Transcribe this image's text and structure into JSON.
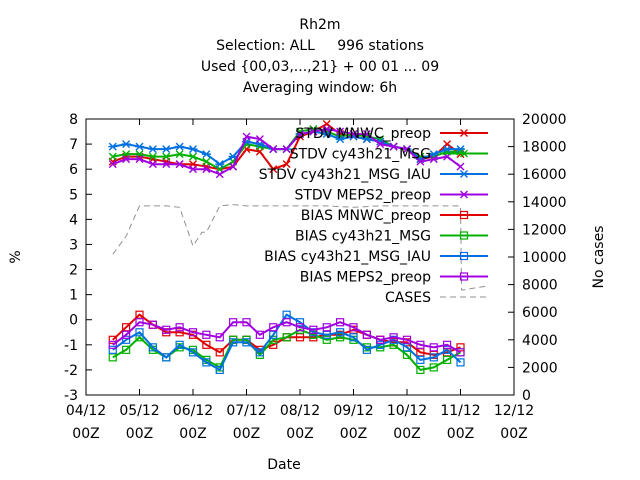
{
  "chart_data": {
    "type": "line",
    "title_lines": [
      "Rh2m",
      "Selection: ALL     996 stations",
      "Used {00,03,...,21} + 00 01 ... 09",
      "Averaging window:  6h"
    ],
    "xlabel": "Date",
    "ylabel": "%",
    "y2label": "No cases",
    "x_ticks": [
      [
        "04/12",
        "00Z"
      ],
      [
        "05/12",
        "00Z"
      ],
      [
        "06/12",
        "00Z"
      ],
      [
        "07/12",
        "00Z"
      ],
      [
        "08/12",
        "00Z"
      ],
      [
        "09/12",
        "00Z"
      ],
      [
        "10/12",
        "00Z"
      ],
      [
        "11/12",
        "00Z"
      ],
      [
        "12/12",
        "00Z"
      ]
    ],
    "xlim": [
      0,
      192
    ],
    "ylim": [
      -3,
      8
    ],
    "y_ticks": [
      -3,
      -2,
      -1,
      0,
      1,
      2,
      3,
      4,
      5,
      6,
      7,
      8
    ],
    "y2lim": [
      0,
      20000
    ],
    "y2_ticks": [
      0,
      2000,
      4000,
      6000,
      8000,
      10000,
      12000,
      14000,
      16000,
      18000,
      20000
    ],
    "grid": false,
    "legend_position": "top-right, inside",
    "x": [
      12,
      18,
      24,
      30,
      36,
      42,
      48,
      54,
      60,
      66,
      72,
      78,
      84,
      90,
      96,
      102,
      108,
      114,
      120,
      126,
      132,
      138,
      144,
      150,
      156,
      162,
      168
    ],
    "series": [
      {
        "name": "STDV MNWC_preop",
        "color": "#e00000",
        "marker": "x",
        "axis": "y1",
        "values": [
          6.3,
          6.5,
          6.5,
          6.4,
          6.3,
          6.2,
          6.2,
          6.1,
          6.0,
          6.1,
          6.8,
          6.7,
          6.0,
          6.2,
          7.3,
          7.5,
          7.8,
          7.4,
          7.3,
          7.2,
          7.1,
          6.9,
          6.8,
          6.4,
          6.5,
          7.0,
          6.6
        ]
      },
      {
        "name": "STDV cy43h21_MSG",
        "color": "#00b000",
        "marker": "x",
        "axis": "y1",
        "values": [
          6.5,
          6.6,
          6.6,
          6.5,
          6.5,
          6.6,
          6.5,
          6.3,
          6.0,
          6.3,
          7.0,
          6.9,
          6.8,
          6.8,
          7.5,
          7.6,
          7.5,
          7.3,
          7.4,
          7.3,
          7.2,
          6.9,
          6.8,
          6.5,
          6.5,
          6.7,
          6.7
        ]
      },
      {
        "name": "STDV cy43h21_MSG_IAU",
        "color": "#0070e0",
        "marker": "*",
        "axis": "y1",
        "values": [
          6.9,
          7.0,
          6.9,
          6.8,
          6.8,
          6.9,
          6.8,
          6.6,
          6.2,
          6.5,
          7.1,
          7.0,
          6.8,
          6.8,
          7.4,
          7.5,
          7.4,
          7.2,
          7.3,
          7.2,
          7.1,
          6.9,
          6.8,
          6.4,
          6.6,
          6.8,
          6.8
        ]
      },
      {
        "name": "STDV MEPS2_preop",
        "color": "#a000e0",
        "marker": "x",
        "axis": "y1",
        "values": [
          6.2,
          6.4,
          6.4,
          6.2,
          6.2,
          6.2,
          6.0,
          6.0,
          5.8,
          6.1,
          7.3,
          7.2,
          6.8,
          6.8,
          7.4,
          7.5,
          7.6,
          7.5,
          7.4,
          7.4,
          7.0,
          6.9,
          6.8,
          6.3,
          6.4,
          6.5,
          6.1
        ]
      },
      {
        "name": "BIAS MNWC_preop",
        "color": "#e00000",
        "marker": "square",
        "axis": "y1",
        "values": [
          -0.8,
          -0.3,
          0.2,
          -0.2,
          -0.5,
          -0.5,
          -0.6,
          -1.0,
          -1.3,
          -0.8,
          -0.8,
          -1.2,
          -1.0,
          -0.7,
          -0.7,
          -0.7,
          -0.6,
          -0.6,
          -0.4,
          -0.6,
          -0.8,
          -0.9,
          -0.9,
          -1.3,
          -1.4,
          -1.3,
          -1.1
        ]
      },
      {
        "name": "BIAS cy43h21_MSG",
        "color": "#00b000",
        "marker": "square",
        "axis": "y1",
        "values": [
          -1.5,
          -1.2,
          -0.7,
          -1.2,
          -1.5,
          -1.1,
          -1.2,
          -1.6,
          -1.9,
          -0.8,
          -0.8,
          -1.4,
          -0.8,
          -0.7,
          -0.4,
          -0.6,
          -0.8,
          -0.7,
          -0.8,
          -1.1,
          -1.1,
          -1.0,
          -1.4,
          -2.0,
          -1.9,
          -1.6,
          -1.3
        ]
      },
      {
        "name": "BIAS cy43h21_MSG_IAU",
        "color": "#0070e0",
        "marker": "square",
        "axis": "y1",
        "values": [
          -1.2,
          -0.8,
          -0.5,
          -1.1,
          -1.5,
          -1.0,
          -1.3,
          -1.7,
          -2.0,
          -0.9,
          -0.9,
          -1.3,
          -0.6,
          0.2,
          -0.1,
          -0.5,
          -0.6,
          -0.5,
          -0.7,
          -1.2,
          -1.0,
          -0.8,
          -1.1,
          -1.6,
          -1.5,
          -1.2,
          -1.7
        ]
      },
      {
        "name": "BIAS MEPS2_preop",
        "color": "#a000e0",
        "marker": "square",
        "axis": "y1",
        "values": [
          -1.0,
          -0.6,
          -0.1,
          -0.2,
          -0.4,
          -0.3,
          -0.5,
          -0.6,
          -0.7,
          -0.1,
          -0.1,
          -0.6,
          -0.3,
          -0.1,
          -0.3,
          -0.4,
          -0.3,
          -0.1,
          -0.3,
          -0.6,
          -0.8,
          -0.7,
          -0.8,
          -1.0,
          -1.1,
          -1.0,
          -1.3
        ]
      },
      {
        "name": "CASES",
        "color": "#909090",
        "dash": true,
        "axis": "y2",
        "x": [
          12,
          18,
          24,
          30,
          36,
          42,
          48,
          52,
          54,
          60,
          66,
          72,
          84,
          96,
          108,
          120,
          132,
          144,
          156,
          168,
          168.5,
          180
        ],
        "values": [
          10200,
          11500,
          13700,
          13700,
          13700,
          13600,
          10800,
          11800,
          11800,
          13700,
          13800,
          13700,
          13700,
          13700,
          13700,
          13600,
          13700,
          13700,
          13700,
          13700,
          7600,
          7900
        ]
      }
    ]
  }
}
